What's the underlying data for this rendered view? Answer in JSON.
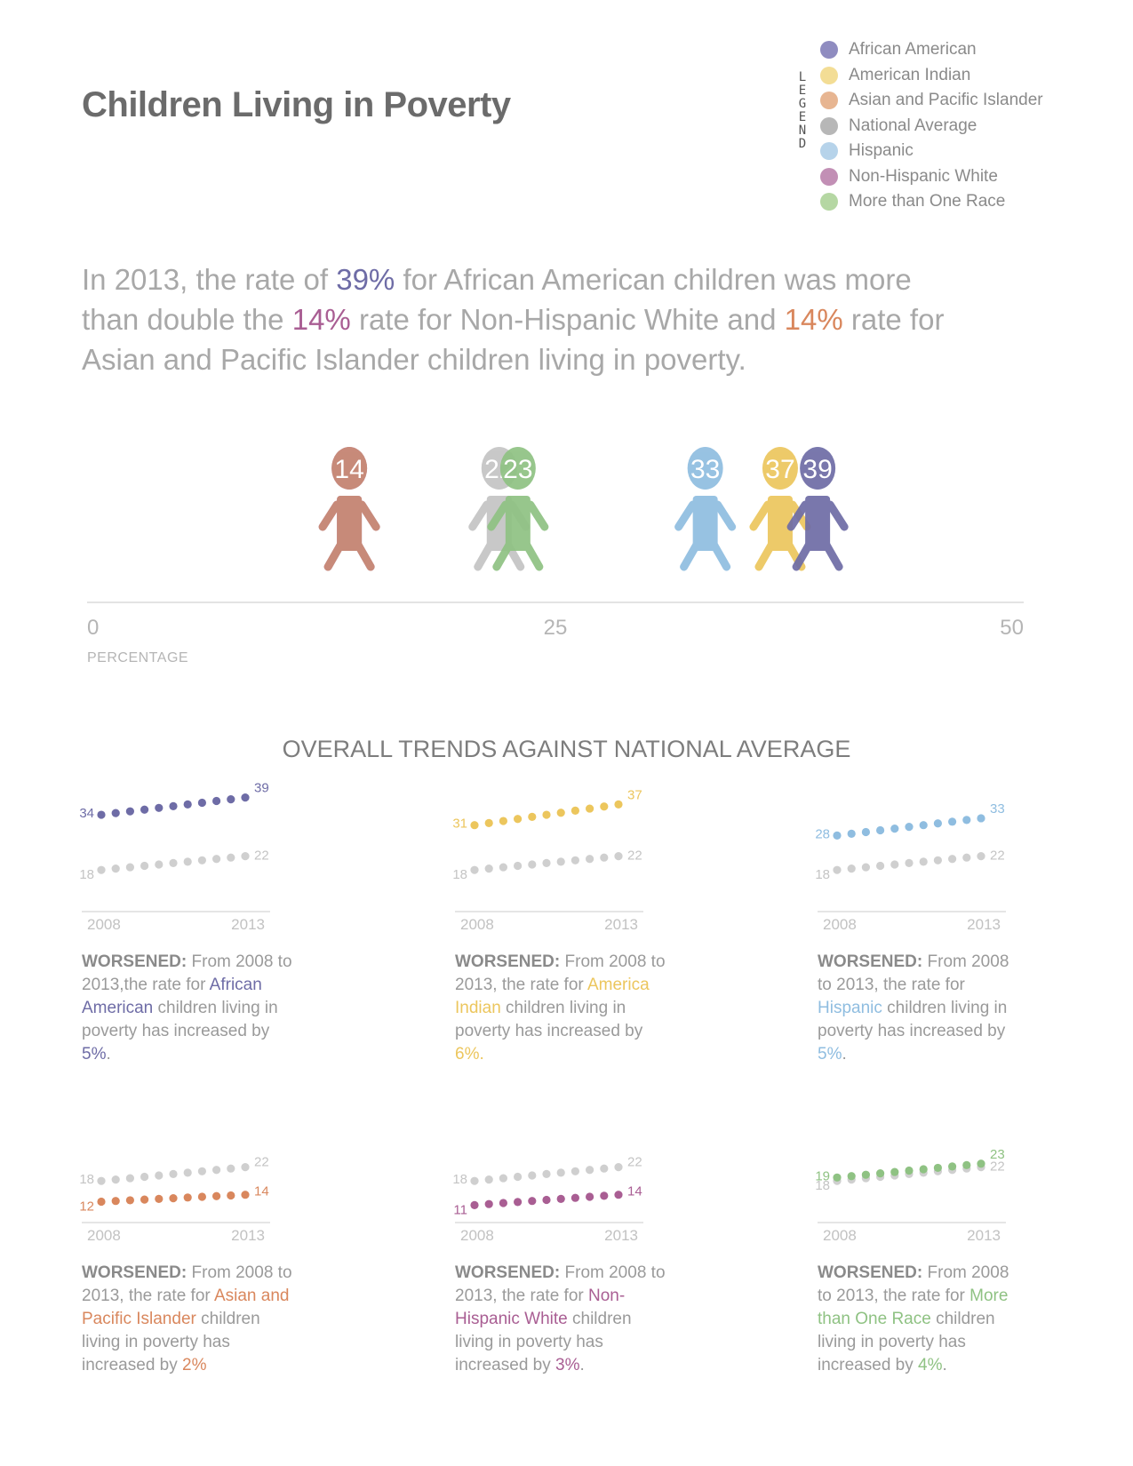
{
  "title": "Children Living in Poverty",
  "legend": {
    "heading": "LEGEND",
    "items": [
      {
        "label": "African American",
        "color": "#8f8cc0"
      },
      {
        "label": "American Indian",
        "color": "#f3dd95"
      },
      {
        "label": "Asian and Pacific Islander",
        "color": "#e7b591"
      },
      {
        "label": "National Average",
        "color": "#b7b7b7"
      },
      {
        "label": "Hispanic",
        "color": "#b6d3ea"
      },
      {
        "label": "Non-Hispanic White",
        "color": "#c28fb5"
      },
      {
        "label": "More than One Race",
        "color": "#b5d7a3"
      }
    ]
  },
  "headline": {
    "p1": "In 2013, the rate of ",
    "v1": "39%",
    "p2": " for African American children was more than double the ",
    "v2": "14%",
    "p3": " rate for Non-Hispanic White and ",
    "v3": "14%",
    "p4": " rate for Asian and Pacific Islander children living in poverty."
  },
  "chart_data": [
    {
      "type": "scatter",
      "xlabel": "PERCENTAGE",
      "xlim": [
        0,
        50
      ],
      "xticks": [
        "0",
        "25",
        "50"
      ],
      "points": [
        {
          "series": "Asian and Pacific Islander",
          "value": 14,
          "label": "14",
          "color": "#c98a74"
        },
        {
          "series": "Non-Hispanic White",
          "value": 14,
          "label": "",
          "color": "#b588b8"
        },
        {
          "series": "National Average",
          "value": 22,
          "label": "22",
          "color": "#c4c4c4"
        },
        {
          "series": "More than One Race",
          "value": 23,
          "label": "23",
          "color": "#8fc283"
        },
        {
          "series": "Hispanic",
          "value": 33,
          "label": "33",
          "color": "#8fbde0"
        },
        {
          "series": "American Indian",
          "value": 37,
          "label": "37",
          "color": "#ecc65d"
        },
        {
          "series": "African American",
          "value": 39,
          "label": "39",
          "color": "#6e6ca6"
        }
      ]
    },
    {
      "type": "line",
      "title": "OVERALL TRENDS AGAINST NATIONAL AVERAGE",
      "x": [
        "2008",
        "2013"
      ],
      "panels": [
        {
          "group": "African American",
          "color": "#6e6ca6",
          "start": 34,
          "end": 39,
          "natStart": 18,
          "natEnd": 22,
          "startLabel": "34",
          "endLabel": "39",
          "natStartLabel": "18",
          "natEndLabel": "22",
          "x0": "2008",
          "x1": "2013",
          "d_bold": "WORSENED:",
          "d1": " From 2008 to 2013,the rate for ",
          "d_group": "African American",
          "d2": " children living in poverty has increased by ",
          "d_change": "5%",
          "d3": "."
        },
        {
          "group": "American Indian",
          "color": "#ecc65d",
          "start": 31,
          "end": 37,
          "natStart": 18,
          "natEnd": 22,
          "startLabel": "31",
          "endLabel": "37",
          "natStartLabel": "18",
          "natEndLabel": "22",
          "x0": "2008",
          "x1": "2013",
          "d_bold": "WORSENED:",
          "d1": " From 2008 to 2013, the rate for ",
          "d_group": "America Indian",
          "d2": " children living in poverty has increased by ",
          "d_change": "6%.",
          "d3": ""
        },
        {
          "group": "Hispanic",
          "color": "#8fbde0",
          "start": 28,
          "end": 33,
          "natStart": 18,
          "natEnd": 22,
          "startLabel": "28",
          "endLabel": "33",
          "natStartLabel": "18",
          "natEndLabel": "22",
          "x0": "2008",
          "x1": "2013",
          "d_bold": "WORSENED:",
          "d1": " From 2008 to 2013, the rate for ",
          "d_group": "Hispanic",
          "d2": " children living in poverty has increased by ",
          "d_change": "5%",
          "d3": "."
        },
        {
          "group": "Asian and Pacific Islander",
          "color": "#d9875d",
          "start": 12,
          "end": 14,
          "natStart": 18,
          "natEnd": 22,
          "startLabel": "12",
          "endLabel": "14",
          "natStartLabel": "18",
          "natEndLabel": "22",
          "x0": "2008",
          "x1": "2013",
          "d_bold": "WORSENED:",
          "d1": " From 2008 to 2013, the rate for ",
          "d_group": "Asian and Pacific Islander",
          "d2": " children living in poverty has increased by ",
          "d_change": "2%",
          "d3": ""
        },
        {
          "group": "Non-Hispanic White",
          "color": "#a95e93",
          "start": 11,
          "end": 14,
          "natStart": 18,
          "natEnd": 22,
          "startLabel": "11",
          "endLabel": "14",
          "natStartLabel": "18",
          "natEndLabel": "22",
          "x0": "2008",
          "x1": "2013",
          "d_bold": "WORSENED:",
          "d1": " From 2008 to 2013, the rate for ",
          "d_group": "Non-Hispanic White",
          "d2": " children living in poverty has increased by ",
          "d_change": "3%",
          "d3": "."
        },
        {
          "group": "More than One Race",
          "color": "#8fc283",
          "start": 19,
          "end": 23,
          "natStart": 18,
          "natEnd": 22,
          "startLabel": "19",
          "endLabel": "23",
          "natStartLabel": "18",
          "natEndLabel": "22",
          "x0": "2008",
          "x1": "2013",
          "d_bold": "WORSENED:",
          "d1": " From 2008 to 2013, the rate for ",
          "d_group": "More than One Race",
          "d2": " children living in poverty has increased by ",
          "d_change": "4%",
          "d3": "."
        }
      ]
    }
  ]
}
